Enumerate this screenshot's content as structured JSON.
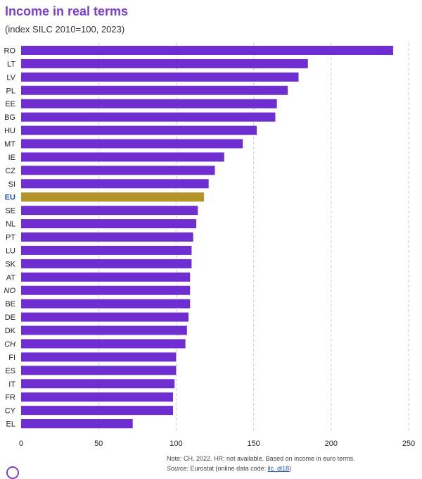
{
  "title": "Income in real terms",
  "subtitle": "(index SILC 2010=100, 2023)",
  "note": "Note: CH, 2022. HR: not available. Based on income in euro terms.",
  "source": {
    "prefix": "Source:",
    "text": " Eurostat (online data code: ",
    "code": "ilc_di18",
    "suffix": ")"
  },
  "colors": {
    "bar": "#6f2fd0",
    "highlight": "#b5952a",
    "grid": "#cccccc"
  },
  "chart_data": {
    "type": "bar",
    "orientation": "horizontal",
    "title": "Income in real terms",
    "subtitle": "(index SILC 2010=100, 2023)",
    "xlim": [
      0,
      250
    ],
    "ticks": [
      0,
      50,
      100,
      150,
      200,
      250
    ],
    "grid": "vertical dashed",
    "highlight": "EU",
    "italic_categories": [
      "NO",
      "CH"
    ],
    "categories": [
      "RO",
      "LT",
      "LV",
      "PL",
      "EE",
      "BG",
      "HU",
      "MT",
      "IE",
      "CZ",
      "SI",
      "EU",
      "SE",
      "NL",
      "PT",
      "LU",
      "SK",
      "AT",
      "NO",
      "BE",
      "DE",
      "DK",
      "CH",
      "FI",
      "ES",
      "IT",
      "FR",
      "CY",
      "EL"
    ],
    "values": [
      240,
      185,
      179,
      172,
      165,
      164,
      152,
      143,
      131,
      125,
      121,
      118,
      114,
      113,
      111,
      110,
      110,
      109,
      109,
      109,
      108,
      107,
      106,
      100,
      100,
      99,
      98,
      98,
      72
    ]
  }
}
